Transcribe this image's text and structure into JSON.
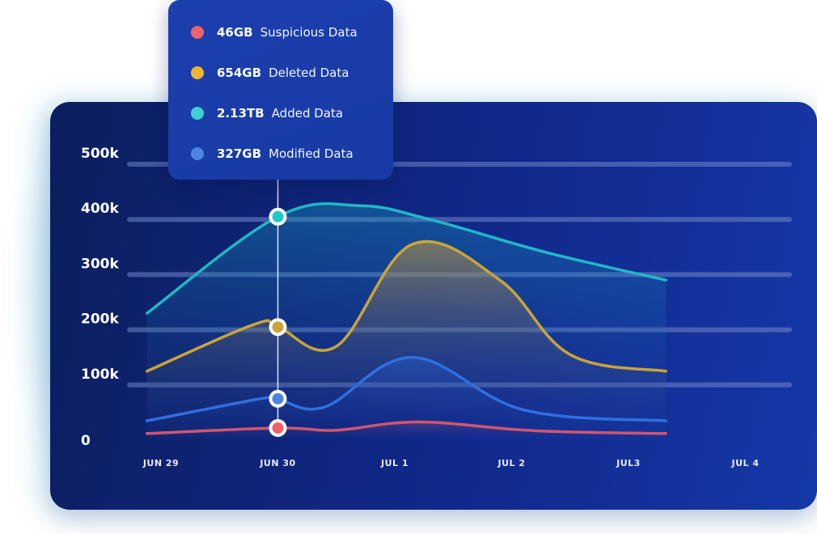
{
  "chart_data": {
    "type": "area",
    "ylim": [
      0,
      500000
    ],
    "yticks": [
      {
        "label": "0",
        "value": 0
      },
      {
        "label": "100k",
        "value": 100000
      },
      {
        "label": "200k",
        "value": 200000
      },
      {
        "label": "300k",
        "value": 300000
      },
      {
        "label": "400k",
        "value": 400000
      },
      {
        "label": "500k",
        "value": 500000
      }
    ],
    "categories": [
      "JUN 29",
      "JUN 30",
      "JUL 1",
      "JUL 2",
      "JUL3",
      "JUL 4"
    ],
    "highlight_category": "JUN 30",
    "series": [
      {
        "key": "added",
        "color": "#1fb8c8",
        "dot_color": "#1fc7c7",
        "x": [
          -0.12,
          1.0,
          1.7,
          2.3,
          3.3,
          4.32
        ],
        "values": [
          230000,
          405000,
          425000,
          400000,
          340000,
          290000
        ]
      },
      {
        "key": "deleted",
        "color": "#c9a43a",
        "dot_color": "#c9a43a",
        "x": [
          -0.12,
          0.8,
          1.0,
          1.5,
          2.15,
          2.9,
          3.5,
          4.32
        ],
        "values": [
          125000,
          210000,
          205000,
          170000,
          355000,
          290000,
          155000,
          125000
        ]
      },
      {
        "key": "modified",
        "color": "#2f6fe0",
        "dot_color": "#4a86e0",
        "x": [
          -0.12,
          0.9,
          1.0,
          1.4,
          2.15,
          3.1,
          4.32
        ],
        "values": [
          35000,
          77000,
          75000,
          60000,
          150000,
          55000,
          35000
        ]
      },
      {
        "key": "suspicious",
        "color": "#d2556f",
        "dot_color": "#f2606e",
        "x": [
          -0.12,
          1.0,
          1.5,
          2.2,
          3.2,
          4.32
        ],
        "values": [
          12000,
          22000,
          18000,
          33000,
          17000,
          12000
        ]
      }
    ]
  },
  "tooltip": {
    "items": [
      {
        "value": "46GB",
        "label": "Suspicious Data",
        "color": "#f0616d"
      },
      {
        "value": "654GB",
        "label": "Deleted Data",
        "color": "#f1b62f"
      },
      {
        "value": "2.13TB",
        "label": "Added Data",
        "color": "#3fcfcf"
      },
      {
        "value": "327GB",
        "label": "Modified Data",
        "color": "#4a86e0"
      }
    ]
  }
}
